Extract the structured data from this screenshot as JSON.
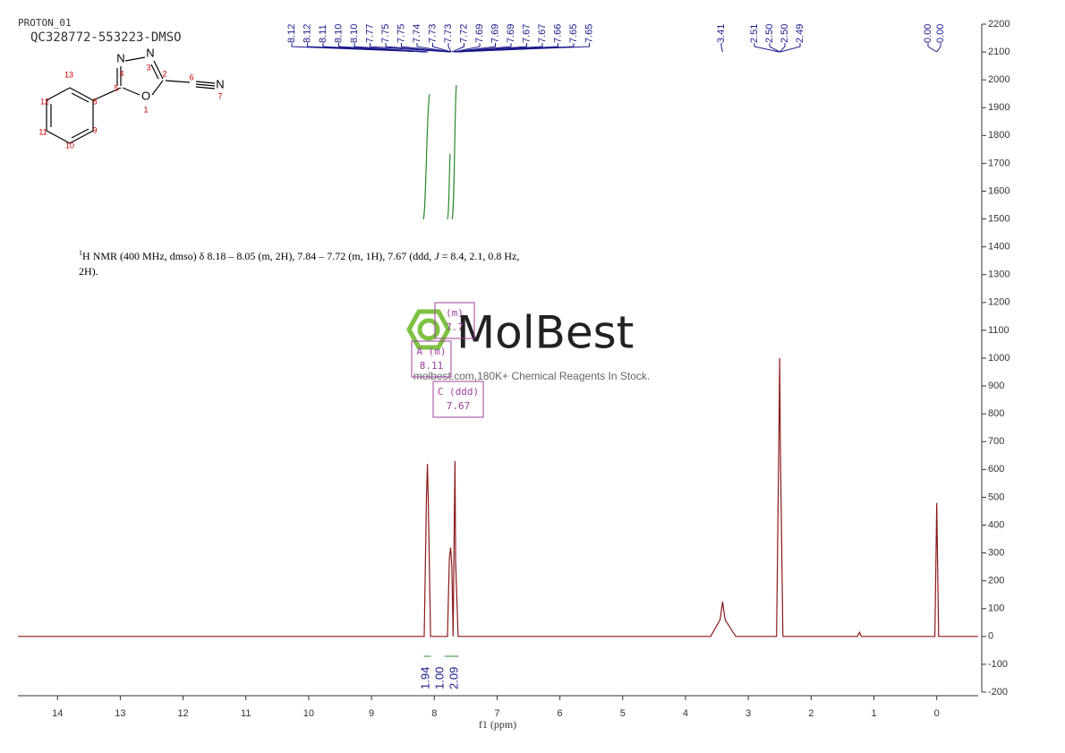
{
  "chart_data": {
    "type": "line",
    "title": "PROTON_01",
    "subtitle": "QC328772-553223-DMSO",
    "xlabel": "f1 (ppm)",
    "x": [
      14.63,
      8.16,
      8.125,
      8.11,
      8.095,
      8.06,
      7.79,
      7.76,
      7.74,
      7.72,
      7.7,
      7.68,
      7.67,
      7.66,
      7.62,
      3.6,
      3.45,
      3.41,
      3.37,
      3.2,
      2.55,
      2.51,
      2.5,
      2.49,
      2.45,
      1.26,
      1.23,
      1.2,
      0.03,
      0,
      -0.03,
      -0.66
    ],
    "values": [
      0,
      0,
      500,
      620,
      480,
      0,
      0,
      280,
      320,
      250,
      0,
      450,
      630,
      270,
      0,
      0,
      60,
      125,
      60,
      0,
      0,
      770,
      1000,
      700,
      0,
      0,
      15,
      0,
      0,
      480,
      0,
      0
    ],
    "color": "#8b1a1a",
    "xlim": [
      14.63,
      -0.66
    ],
    "ylim": [
      -200,
      2200
    ],
    "xticks": [
      14,
      13,
      12,
      11,
      10,
      9,
      8,
      7,
      6,
      5,
      4,
      3,
      2,
      1,
      0
    ],
    "yticks": [
      -200,
      -100,
      0,
      100,
      200,
      300,
      400,
      500,
      600,
      700,
      800,
      900,
      1000,
      1100,
      1200,
      1300,
      1400,
      1500,
      1600,
      1700,
      1800,
      1900,
      2000,
      2100,
      2200
    ],
    "peak_labels": [
      8.12,
      8.12,
      8.11,
      {
        "value": 8.1,
        "label": "8.10"
      },
      {
        "value": 8.1,
        "label": "8.10"
      },
      7.77,
      7.75,
      7.75,
      7.74,
      7.73,
      7.73,
      7.72,
      7.69,
      7.69,
      7.69,
      7.67,
      7.67,
      7.66,
      7.65,
      7.65,
      3.41,
      2.51,
      {
        "value": 2.5,
        "label": "2.50"
      },
      {
        "value": 2.5,
        "label": "2.50"
      },
      2.49,
      {
        "value": 0,
        "label": "0.00"
      },
      {
        "value": 0,
        "label": "0.00"
      }
    ],
    "integrals": [
      {
        "x": 8.11,
        "value": 1.94
      },
      {
        "x": 7.78,
        "value": {
          "value": 1,
          "label": "1.00"
        }
      },
      {
        "x": 7.67,
        "value": 2.09
      }
    ],
    "annotation": {
      "sup": "1",
      "text": "H NMR (400 MHz, dmso) δ 8.18 – 8.05 (m, 2H), 7.84 – 7.72 (m, 1H), 7.67 (ddd, ",
      "italic": "J",
      "text2": " = 8.4, 2.1, 0.8 Hz,",
      "line2": "2H)."
    },
    "multiplets": [
      {
        "name": "(m)",
        "shift": "7.7"
      },
      {
        "name": "A (m)",
        "shift": "8.11"
      },
      {
        "name": "C (ddd)",
        "shift": "7.67"
      }
    ],
    "watermark": {
      "logo": "MolBest",
      "text": "molbest.com,180K+ Chemical Reagents In Stock."
    },
    "molecule": [
      "N",
      "N",
      "4",
      "3",
      "2",
      "5",
      "O",
      "1",
      "6",
      "N",
      "7",
      "13",
      "8",
      "12",
      "11",
      "9",
      "10"
    ]
  }
}
